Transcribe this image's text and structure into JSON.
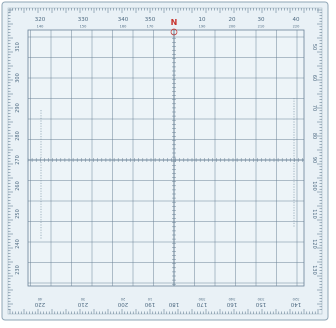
{
  "plotter": {
    "north_label": "N",
    "top_numbers": [
      "320",
      "330",
      "340",
      "350",
      "N",
      "10",
      "20",
      "30",
      "40"
    ],
    "top_sub_numbers": [
      "140",
      "150",
      "160",
      "170",
      "",
      "190",
      "200",
      "210",
      "220"
    ],
    "bottom_numbers": [
      "220",
      "210",
      "200",
      "190",
      "180",
      "170",
      "160",
      "150",
      "140"
    ],
    "bottom_sub_numbers": [
      "40",
      "30",
      "20",
      "10",
      "",
      "350",
      "340",
      "330",
      "320"
    ],
    "left_numbers": [
      "310",
      "300",
      "290",
      "280",
      "270",
      "260",
      "250",
      "240",
      "230"
    ],
    "right_numbers": [
      "50",
      "60",
      "70",
      "80",
      "90",
      "100",
      "110",
      "120",
      "130"
    ],
    "colors": {
      "background": "#e9f1f6",
      "grid": "#6a8296",
      "scale": "#4f6b82",
      "border": "#8fa6b6",
      "north": "#c8322c"
    }
  }
}
